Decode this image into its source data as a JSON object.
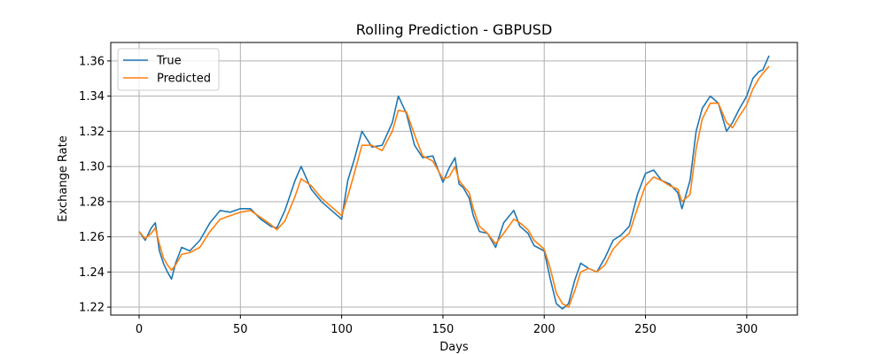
{
  "chart_data": {
    "type": "line",
    "title": "Rolling Prediction - GBPUSD",
    "xlabel": "Days",
    "ylabel": "Exchange Rate",
    "xlim": [
      -14,
      325
    ],
    "ylim": [
      1.2155,
      1.3705
    ],
    "x_ticks": [
      0,
      50,
      100,
      150,
      200,
      250,
      300
    ],
    "y_ticks": [
      1.22,
      1.24,
      1.26,
      1.28,
      1.3,
      1.32,
      1.34,
      1.36
    ],
    "y_tick_labels": [
      "1.22",
      "1.24",
      "1.26",
      "1.28",
      "1.30",
      "1.32",
      "1.34",
      "1.36"
    ],
    "grid": true,
    "legend_position": "top-left",
    "colors": {
      "True": "#1f77b4",
      "Predicted": "#ff7f0e"
    },
    "series": [
      {
        "name": "True",
        "x": [
          0,
          3,
          6,
          8,
          10,
          12,
          14,
          16,
          18,
          21,
          25,
          30,
          35,
          40,
          45,
          50,
          55,
          60,
          65,
          68,
          72,
          77,
          80,
          85,
          90,
          95,
          100,
          103,
          106,
          110,
          115,
          120,
          125,
          128,
          132,
          136,
          140,
          145,
          150,
          153,
          156,
          158,
          160,
          163,
          165,
          168,
          172,
          176,
          180,
          185,
          188,
          192,
          195,
          200,
          203,
          206,
          209,
          212,
          215,
          218,
          222,
          226,
          230,
          234,
          238,
          242,
          246,
          250,
          254,
          258,
          262,
          266,
          268,
          272,
          275,
          278,
          282,
          286,
          290,
          293,
          296,
          300,
          303,
          306,
          308,
          311
        ],
        "y": [
          1.263,
          1.258,
          1.265,
          1.268,
          1.252,
          1.245,
          1.24,
          1.236,
          1.245,
          1.254,
          1.252,
          1.258,
          1.268,
          1.275,
          1.274,
          1.276,
          1.276,
          1.27,
          1.266,
          1.265,
          1.275,
          1.292,
          1.3,
          1.287,
          1.28,
          1.275,
          1.27,
          1.292,
          1.303,
          1.32,
          1.311,
          1.312,
          1.325,
          1.34,
          1.33,
          1.312,
          1.305,
          1.306,
          1.291,
          1.299,
          1.305,
          1.29,
          1.288,
          1.282,
          1.272,
          1.263,
          1.262,
          1.254,
          1.268,
          1.275,
          1.266,
          1.262,
          1.255,
          1.252,
          1.236,
          1.222,
          1.219,
          1.222,
          1.235,
          1.245,
          1.242,
          1.24,
          1.248,
          1.258,
          1.261,
          1.266,
          1.284,
          1.296,
          1.298,
          1.292,
          1.29,
          1.285,
          1.276,
          1.292,
          1.32,
          1.333,
          1.34,
          1.336,
          1.32,
          1.325,
          1.332,
          1.34,
          1.35,
          1.354,
          1.355,
          1.363
        ]
      },
      {
        "name": "Predicted",
        "x": [
          0,
          3,
          6,
          8,
          10,
          12,
          14,
          16,
          18,
          21,
          25,
          30,
          35,
          40,
          45,
          50,
          55,
          60,
          65,
          68,
          72,
          77,
          80,
          85,
          90,
          95,
          100,
          103,
          106,
          110,
          115,
          120,
          125,
          128,
          132,
          136,
          140,
          145,
          150,
          153,
          156,
          158,
          160,
          163,
          165,
          168,
          172,
          176,
          180,
          185,
          188,
          192,
          195,
          200,
          203,
          206,
          209,
          212,
          215,
          218,
          222,
          226,
          230,
          234,
          238,
          242,
          246,
          250,
          254,
          258,
          262,
          266,
          268,
          272,
          275,
          278,
          282,
          286,
          290,
          293,
          296,
          300,
          303,
          306,
          308,
          311
        ],
        "y": [
          1.263,
          1.259,
          1.262,
          1.265,
          1.256,
          1.248,
          1.244,
          1.241,
          1.244,
          1.25,
          1.251,
          1.254,
          1.263,
          1.27,
          1.272,
          1.274,
          1.275,
          1.271,
          1.267,
          1.264,
          1.269,
          1.283,
          1.293,
          1.289,
          1.282,
          1.277,
          1.272,
          1.283,
          1.295,
          1.312,
          1.312,
          1.309,
          1.32,
          1.332,
          1.331,
          1.318,
          1.306,
          1.303,
          1.293,
          1.294,
          1.3,
          1.292,
          1.289,
          1.285,
          1.276,
          1.266,
          1.262,
          1.256,
          1.262,
          1.27,
          1.268,
          1.264,
          1.258,
          1.253,
          1.242,
          1.228,
          1.222,
          1.22,
          1.229,
          1.24,
          1.242,
          1.24,
          1.244,
          1.253,
          1.258,
          1.262,
          1.276,
          1.289,
          1.294,
          1.292,
          1.289,
          1.287,
          1.28,
          1.284,
          1.31,
          1.327,
          1.336,
          1.336,
          1.325,
          1.322,
          1.328,
          1.335,
          1.344,
          1.35,
          1.353,
          1.357
        ]
      }
    ]
  }
}
